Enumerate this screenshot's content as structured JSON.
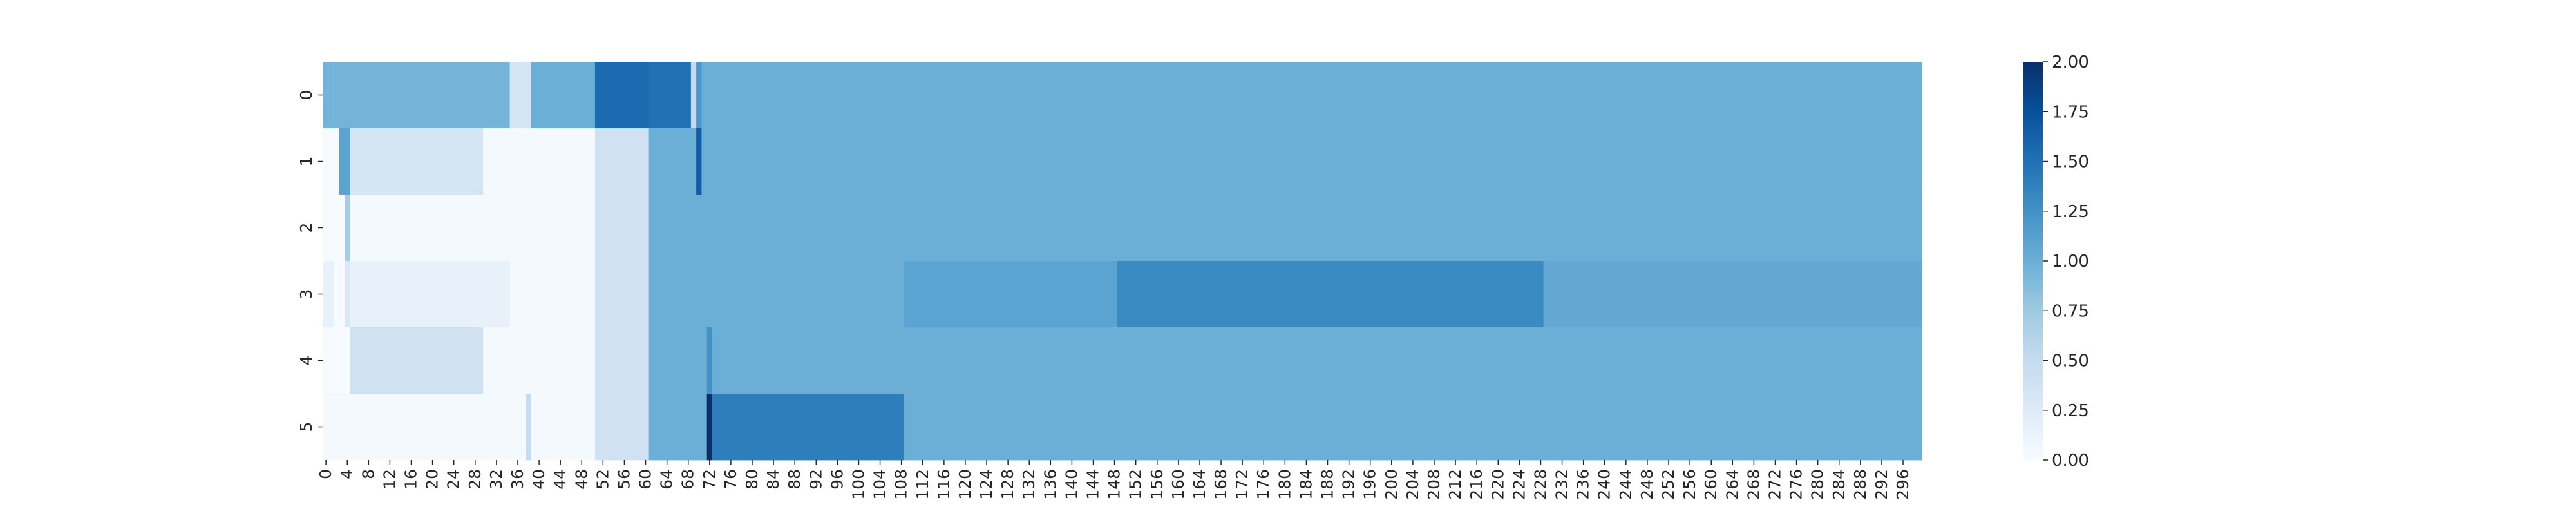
{
  "chart_data": {
    "type": "heatmap",
    "title": "",
    "xlabel": "",
    "ylabel": "",
    "n_cols": 300,
    "x_tick_step": 4,
    "y_categories": [
      "0",
      "1",
      "2",
      "3",
      "4",
      "5"
    ],
    "value_range": [
      0,
      2
    ],
    "colormap": "Blues",
    "colorbar": {
      "ticks": [
        0.0,
        0.25,
        0.5,
        0.75,
        1.0,
        1.25,
        1.5,
        1.75,
        2.0
      ],
      "tick_labels": [
        "0.00",
        "0.25",
        "0.50",
        "0.75",
        "1.00",
        "1.25",
        "1.50",
        "1.75",
        "2.00"
      ]
    },
    "rows": [
      {
        "label": "0",
        "segments": [
          {
            "start": 0,
            "end": 1,
            "value": 0.95
          },
          {
            "start": 2,
            "end": 34,
            "value": 0.95
          },
          {
            "start": 35,
            "end": 38,
            "value": 0.35
          },
          {
            "start": 39,
            "end": 50,
            "value": 1.0
          },
          {
            "start": 51,
            "end": 60,
            "value": 1.55
          },
          {
            "start": 61,
            "end": 68,
            "value": 1.5
          },
          {
            "start": 69,
            "end": 69,
            "value": 0.5
          },
          {
            "start": 70,
            "end": 70,
            "value": 1.2
          },
          {
            "start": 71,
            "end": 299,
            "value": 1.0
          }
        ]
      },
      {
        "label": "1",
        "segments": [
          {
            "start": 0,
            "end": 2,
            "value": 0.0
          },
          {
            "start": 3,
            "end": 4,
            "value": 1.1
          },
          {
            "start": 5,
            "end": 29,
            "value": 0.35
          },
          {
            "start": 30,
            "end": 50,
            "value": 0.03
          },
          {
            "start": 51,
            "end": 60,
            "value": 0.4
          },
          {
            "start": 61,
            "end": 69,
            "value": 1.0
          },
          {
            "start": 70,
            "end": 70,
            "value": 1.65
          },
          {
            "start": 71,
            "end": 299,
            "value": 1.0
          }
        ]
      },
      {
        "label": "2",
        "segments": [
          {
            "start": 0,
            "end": 3,
            "value": 0.0
          },
          {
            "start": 4,
            "end": 4,
            "value": 0.7
          },
          {
            "start": 5,
            "end": 50,
            "value": 0.03
          },
          {
            "start": 51,
            "end": 60,
            "value": 0.4
          },
          {
            "start": 61,
            "end": 299,
            "value": 1.0
          }
        ]
      },
      {
        "label": "3",
        "segments": [
          {
            "start": 0,
            "end": 1,
            "value": 0.15
          },
          {
            "start": 2,
            "end": 3,
            "value": 0.0
          },
          {
            "start": 4,
            "end": 4,
            "value": 0.3
          },
          {
            "start": 5,
            "end": 34,
            "value": 0.15
          },
          {
            "start": 35,
            "end": 50,
            "value": 0.03
          },
          {
            "start": 51,
            "end": 60,
            "value": 0.4
          },
          {
            "start": 61,
            "end": 108,
            "value": 1.0
          },
          {
            "start": 109,
            "end": 148,
            "value": 1.1
          },
          {
            "start": 149,
            "end": 228,
            "value": 1.3
          },
          {
            "start": 229,
            "end": 299,
            "value": 1.05
          }
        ]
      },
      {
        "label": "4",
        "segments": [
          {
            "start": 0,
            "end": 4,
            "value": 0.0
          },
          {
            "start": 5,
            "end": 29,
            "value": 0.4
          },
          {
            "start": 30,
            "end": 50,
            "value": 0.03
          },
          {
            "start": 51,
            "end": 60,
            "value": 0.4
          },
          {
            "start": 61,
            "end": 71,
            "value": 1.0
          },
          {
            "start": 72,
            "end": 72,
            "value": 1.25
          },
          {
            "start": 73,
            "end": 299,
            "value": 1.0
          }
        ]
      },
      {
        "label": "5",
        "segments": [
          {
            "start": 0,
            "end": 37,
            "value": 0.03
          },
          {
            "start": 38,
            "end": 38,
            "value": 0.5
          },
          {
            "start": 39,
            "end": 50,
            "value": 0.03
          },
          {
            "start": 51,
            "end": 60,
            "value": 0.4
          },
          {
            "start": 61,
            "end": 71,
            "value": 1.0
          },
          {
            "start": 72,
            "end": 72,
            "value": 2.0
          },
          {
            "start": 73,
            "end": 108,
            "value": 1.4
          },
          {
            "start": 109,
            "end": 299,
            "value": 1.0
          }
        ]
      }
    ]
  }
}
